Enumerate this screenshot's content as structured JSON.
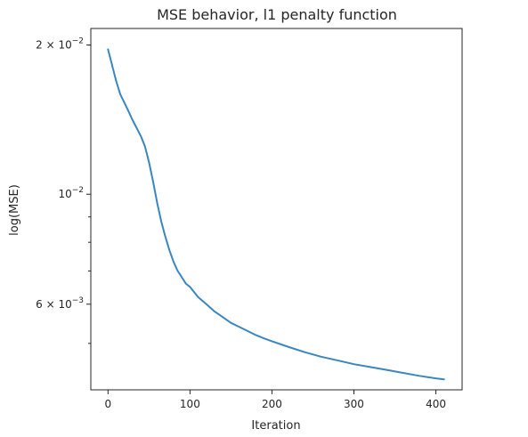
{
  "chart_data": {
    "type": "line",
    "title": "MSE behavior, l1 penalty function",
    "xlabel": "Iteration",
    "ylabel": "log(MSE)",
    "y_scale": "log",
    "xlim": [
      -21,
      432
    ],
    "ylim": [
      0.00403,
      0.0216
    ],
    "x_ticks": [
      0,
      100,
      200,
      300,
      400
    ],
    "x_tick_labels": [
      "0",
      "100",
      "200",
      "300",
      "400"
    ],
    "y_major_ticks": [
      0.02,
      0.01,
      0.006
    ],
    "y_major_labels": [
      {
        "coef": "2",
        "exp": "−2"
      },
      {
        "coef": "",
        "exp": "−2"
      },
      {
        "coef": "6",
        "exp": "−3"
      }
    ],
    "y_minor_ticks": [
      0.003,
      0.004,
      0.005,
      0.007,
      0.008,
      0.009,
      0.02
    ],
    "grid": false,
    "line_color": "#3a87bf",
    "series": [
      {
        "x": [
          0,
          5,
          10,
          15,
          20,
          25,
          30,
          35,
          40,
          45,
          50,
          55,
          60,
          65,
          70,
          75,
          80,
          85,
          90,
          95,
          100,
          110,
          120,
          130,
          140,
          150,
          160,
          170,
          180,
          190,
          200,
          220,
          240,
          260,
          280,
          300,
          320,
          340,
          360,
          380,
          400,
          410
        ],
        "y": [
          0.0196,
          0.0182,
          0.0169,
          0.0159,
          0.0153,
          0.0147,
          0.0141,
          0.0136,
          0.0131,
          0.0125,
          0.0116,
          0.0106,
          0.0096,
          0.0088,
          0.0082,
          0.0077,
          0.0073,
          0.007,
          0.0068,
          0.0066,
          0.0065,
          0.0062,
          0.006,
          0.0058,
          0.00565,
          0.0055,
          0.0054,
          0.0053,
          0.0052,
          0.00512,
          0.00505,
          0.00492,
          0.0048,
          0.0047,
          0.00462,
          0.00454,
          0.00448,
          0.00442,
          0.00436,
          0.0043,
          0.00425,
          0.00423
        ]
      }
    ]
  }
}
